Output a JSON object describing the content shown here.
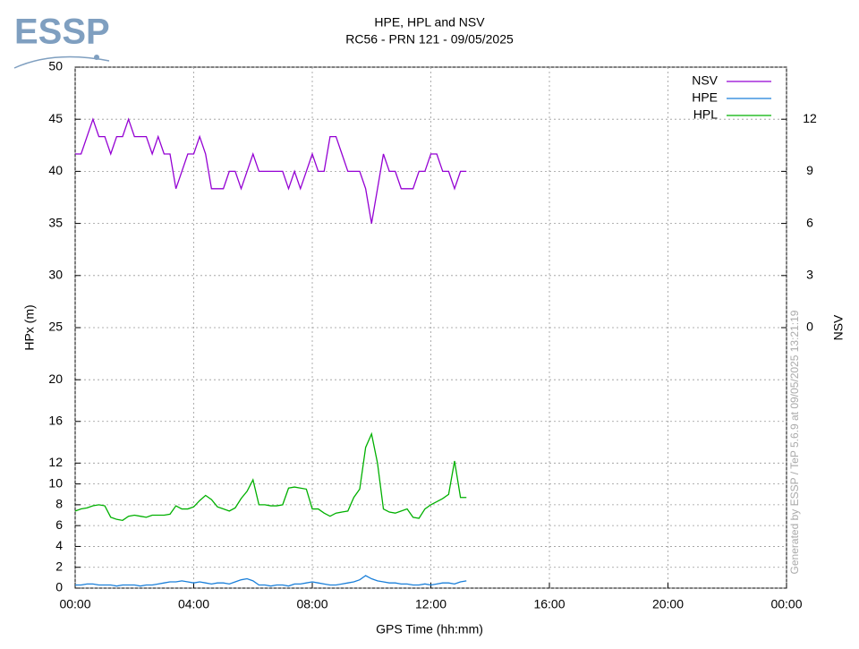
{
  "logo": "ESSP",
  "chart_data": {
    "type": "line",
    "title": "HPE, HPL and NSV",
    "subtitle": "RC56 - PRN 121 - 09/05/2025",
    "x_label": "GPS Time (hh:mm)",
    "y_label": "HPx (m)",
    "y2_label": "NSV",
    "watermark": "Generated by ESSP / TeP 5.6.9 at 09/05/2025 13:21:19",
    "x": [
      0,
      0.2,
      0.4,
      0.6,
      0.8,
      1.0,
      1.2,
      1.4,
      1.6,
      1.8,
      2.0,
      2.2,
      2.4,
      2.6,
      2.8,
      3.0,
      3.2,
      3.4,
      3.6,
      3.8,
      4.0,
      4.2,
      4.4,
      4.6,
      4.8,
      5.0,
      5.2,
      5.4,
      5.6,
      5.8,
      6.0,
      6.2,
      6.4,
      6.6,
      6.8,
      7.0,
      7.2,
      7.4,
      7.6,
      7.8,
      8.0,
      8.2,
      8.4,
      8.6,
      8.8,
      9.0,
      9.2,
      9.4,
      9.6,
      9.8,
      10.0,
      10.2,
      10.4,
      10.6,
      10.8,
      11.0,
      11.2,
      11.4,
      11.6,
      11.8,
      12.0,
      12.2,
      12.4,
      12.6,
      12.8,
      13.0,
      13.2
    ],
    "series": [
      {
        "name": "NSV",
        "color": "#9400d3",
        "axis": "y2",
        "values": [
          10,
          10,
          11,
          12,
          11,
          11,
          10,
          11,
          11,
          12,
          11,
          11,
          11,
          10,
          11,
          10,
          10,
          8,
          9,
          10,
          10,
          11,
          10,
          8,
          8,
          8,
          9,
          9,
          8,
          9,
          10,
          9,
          9,
          9,
          9,
          9,
          8,
          9,
          8,
          9,
          10,
          9,
          9,
          11,
          11,
          10,
          9,
          9,
          9,
          8,
          6,
          8,
          10,
          9,
          9,
          8,
          8,
          8,
          9,
          9,
          10,
          10,
          9,
          9,
          8,
          9,
          9
        ]
      },
      {
        "name": "HPE",
        "color": "#1a7fd9",
        "values": [
          0.3,
          0.3,
          0.4,
          0.4,
          0.3,
          0.3,
          0.3,
          0.2,
          0.3,
          0.3,
          0.3,
          0.2,
          0.3,
          0.3,
          0.4,
          0.5,
          0.6,
          0.6,
          0.7,
          0.6,
          0.5,
          0.6,
          0.5,
          0.4,
          0.5,
          0.5,
          0.4,
          0.6,
          0.8,
          0.9,
          0.7,
          0.3,
          0.3,
          0.2,
          0.3,
          0.3,
          0.2,
          0.4,
          0.4,
          0.5,
          0.6,
          0.5,
          0.4,
          0.3,
          0.3,
          0.4,
          0.5,
          0.6,
          0.8,
          1.2,
          0.9,
          0.7,
          0.6,
          0.5,
          0.5,
          0.4,
          0.4,
          0.3,
          0.3,
          0.4,
          0.3,
          0.4,
          0.5,
          0.5,
          0.4,
          0.6,
          0.7
        ]
      },
      {
        "name": "HPL",
        "color": "#00b000",
        "values": [
          7.4,
          7.6,
          7.7,
          7.9,
          8.0,
          7.9,
          6.8,
          6.6,
          6.5,
          6.9,
          7.0,
          6.9,
          6.8,
          7.0,
          7.0,
          7.0,
          7.1,
          7.9,
          7.6,
          7.6,
          7.8,
          8.4,
          8.9,
          8.5,
          7.8,
          7.6,
          7.4,
          7.7,
          8.6,
          9.3,
          10.4,
          8.0,
          8.0,
          7.9,
          7.9,
          8.0,
          9.6,
          9.7,
          9.6,
          9.5,
          7.6,
          7.6,
          7.2,
          6.9,
          7.2,
          7.3,
          7.4,
          8.7,
          9.5,
          13.5,
          14.8,
          12.0,
          7.6,
          7.3,
          7.2,
          7.4,
          7.6,
          6.8,
          6.7,
          7.6,
          8.0,
          8.3,
          8.6,
          9.0,
          12.2,
          8.7,
          8.7
        ]
      }
    ],
    "xlim": [
      0,
      24
    ],
    "xticks": [
      {
        "value": 0,
        "label": "00:00"
      },
      {
        "value": 4,
        "label": "04:00"
      },
      {
        "value": 8,
        "label": "08:00"
      },
      {
        "value": 12,
        "label": "12:00"
      },
      {
        "value": 16,
        "label": "16:00"
      },
      {
        "value": 20,
        "label": "20:00"
      },
      {
        "value": 24,
        "label": "00:00"
      }
    ],
    "ylim": [
      0,
      50
    ],
    "yticks": [
      0,
      2,
      4,
      6,
      8,
      10,
      12,
      16,
      20,
      25,
      30,
      35,
      40,
      45,
      50
    ],
    "y2lim": [
      -15,
      15
    ],
    "y2ticks": [
      0,
      3,
      6,
      9,
      12
    ],
    "grid": true,
    "legend": "top-right"
  }
}
